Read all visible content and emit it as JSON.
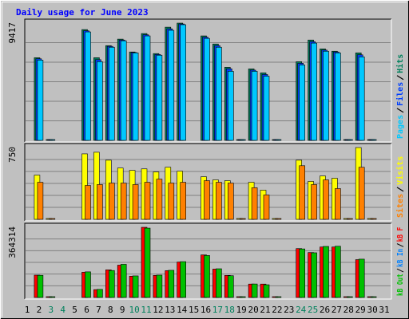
{
  "title": "Daily usage for June 2023",
  "categories": [
    "1",
    "2",
    "3",
    "4",
    "5",
    "6",
    "7",
    "8",
    "9",
    "10",
    "11",
    "12",
    "13",
    "14",
    "15",
    "16",
    "17",
    "18",
    "19",
    "20",
    "21",
    "22",
    "23",
    "24",
    "25",
    "26",
    "27",
    "28",
    "29",
    "30",
    "31"
  ],
  "highlight": [
    "3",
    "4",
    "10",
    "11",
    "17",
    "18",
    "24",
    "25"
  ],
  "highlight_color": "#00805c",
  "chart_data": [
    {
      "type": "bar",
      "ylim": [
        0,
        9417
      ],
      "yticks": [
        9417
      ],
      "grid": true,
      "series": [
        {
          "name": "Hits",
          "color": "#00805c",
          "values": [
            0,
            6640,
            60,
            0,
            0,
            8900,
            6640,
            7610,
            8130,
            7100,
            8580,
            6970,
            9090,
            9417,
            0,
            8390,
            7740,
            5870,
            60,
            5740,
            5420,
            40,
            0,
            6320,
            8060,
            7350,
            7160,
            50,
            7030,
            50,
            0
          ]
        },
        {
          "name": "Files",
          "color": "#0040ff",
          "values": [
            0,
            6550,
            55,
            0,
            0,
            8800,
            6480,
            7550,
            8060,
            7060,
            8480,
            6900,
            8960,
            9350,
            0,
            8290,
            7610,
            5750,
            55,
            5640,
            5290,
            35,
            0,
            6190,
            7930,
            7250,
            7100,
            45,
            6870,
            45,
            0
          ]
        },
        {
          "name": "Pages",
          "color": "#00c8ff",
          "values": [
            0,
            6450,
            50,
            0,
            0,
            8710,
            6320,
            7480,
            8000,
            7030,
            8390,
            6840,
            8840,
            9290,
            0,
            8190,
            7480,
            5550,
            50,
            5550,
            5160,
            30,
            0,
            6060,
            7810,
            7160,
            7030,
            40,
            6710,
            40,
            0
          ]
        }
      ]
    },
    {
      "type": "bar",
      "ylim": [
        0,
        750
      ],
      "yticks": [
        750
      ],
      "grid": true,
      "series": [
        {
          "name": "Visits",
          "color": "#ffff00",
          "values": [
            0,
            462,
            5,
            0,
            0,
            684,
            701,
            618,
            536,
            511,
            527,
            495,
            544,
            503,
            0,
            445,
            412,
            404,
            5,
            387,
            305,
            5,
            0,
            618,
            396,
            453,
            429,
            5,
            750,
            5,
            0
          ]
        },
        {
          "name": "Sites",
          "color": "#ff8000",
          "values": [
            0,
            387,
            4,
            0,
            0,
            354,
            363,
            379,
            379,
            363,
            387,
            420,
            379,
            387,
            0,
            404,
            387,
            379,
            4,
            330,
            255,
            4,
            0,
            560,
            363,
            412,
            321,
            4,
            544,
            4,
            0
          ]
        }
      ]
    },
    {
      "type": "bar",
      "ylim": [
        0,
        364314
      ],
      "yticks": [
        364314
      ],
      "grid": true,
      "series": [
        {
          "name": "kB F",
          "color": "#ff0000",
          "values": [
            0,
            115900,
            500,
            0,
            0,
            131000,
            40900,
            143300,
            167800,
            110500,
            364314,
            114600,
            139200,
            184200,
            0,
            221000,
            147400,
            114600,
            500,
            69600,
            69600,
            500,
            0,
            253800,
            233300,
            262000,
            262000,
            500,
            196500,
            500,
            0
          ]
        },
        {
          "name": "kB In",
          "color": "#0080ff",
          "values": [
            0,
            0,
            0,
            0,
            0,
            0,
            0,
            0,
            0,
            0,
            0,
            0,
            0,
            0,
            0,
            0,
            0,
            0,
            0,
            0,
            0,
            0,
            0,
            0,
            0,
            0,
            0,
            0,
            0,
            0,
            0
          ]
        },
        {
          "name": "kB Out",
          "color": "#00c000",
          "values": [
            0,
            115000,
            500,
            0,
            0,
            133000,
            42000,
            140000,
            172000,
            112000,
            360000,
            116000,
            141000,
            186000,
            0,
            218000,
            149000,
            113000,
            500,
            70000,
            66000,
            500,
            0,
            252000,
            232000,
            265000,
            266000,
            500,
            199000,
            500,
            0
          ]
        }
      ]
    }
  ]
}
